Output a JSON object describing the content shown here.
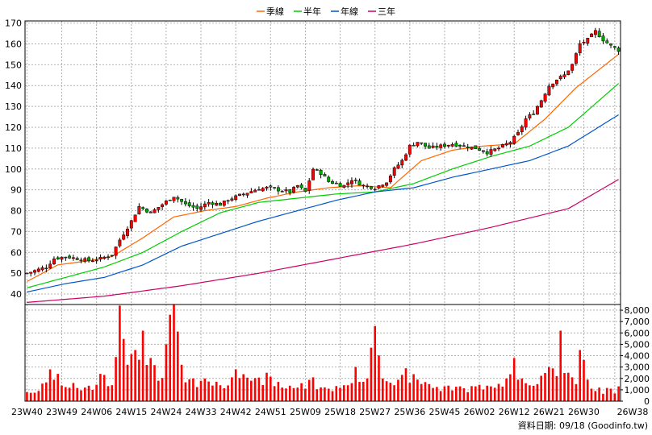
{
  "chart_data": {
    "type": "candlestick",
    "title": "",
    "legend": {
      "placement": "top-center",
      "items": [
        {
          "name": "季線",
          "color": "#ff6600"
        },
        {
          "name": "半年",
          "color": "#00cc00"
        },
        {
          "name": "年線",
          "color": "#0055cc"
        },
        {
          "name": "三年",
          "color": "#cc0066"
        }
      ]
    },
    "price_axis": {
      "ylim": [
        35,
        171
      ],
      "ticks": [
        40,
        50,
        60,
        70,
        80,
        90,
        100,
        110,
        120,
        130,
        140,
        150,
        160,
        170
      ]
    },
    "volume_axis": {
      "ylim": [
        0,
        8500
      ],
      "ticks": [
        0,
        1000,
        2000,
        3000,
        4000,
        5000,
        6000,
        7000,
        8000
      ],
      "tick_labels": [
        "0",
        "1,000",
        "2,000",
        "3,000",
        "4,000",
        "5,000",
        "6,000",
        "7,000",
        "8,000"
      ]
    },
    "x_axis": {
      "tick_labels": [
        "23W40",
        "23W49",
        "24W06",
        "24W15",
        "24W24",
        "24W33",
        "24W42",
        "24W51",
        "25W09",
        "25W18",
        "25W27",
        "25W36",
        "25W45",
        "26W02",
        "26W12",
        "26W21",
        "26W30",
        "26W38"
      ],
      "tick_bar_index": [
        0,
        9,
        18,
        27,
        36,
        45,
        54,
        63,
        72,
        81,
        90,
        99,
        108,
        117,
        126,
        135,
        144,
        152
      ]
    },
    "candle_colors": {
      "up": "#ff0000",
      "down": "#00aa00",
      "wick": "#000000"
    },
    "volume_color": "#ff0000",
    "grid": true,
    "source_note": "資料日期: 09/18 (Goodinfo.tw)",
    "close_anchors": [
      [
        0,
        50
      ],
      [
        5,
        53
      ],
      [
        7,
        57
      ],
      [
        10,
        58
      ],
      [
        13,
        57
      ],
      [
        16,
        56
      ],
      [
        19,
        57
      ],
      [
        22,
        59
      ],
      [
        24,
        66
      ],
      [
        27,
        75
      ],
      [
        29,
        82
      ],
      [
        32,
        79
      ],
      [
        35,
        83
      ],
      [
        38,
        87
      ],
      [
        41,
        83
      ],
      [
        44,
        81
      ],
      [
        47,
        84
      ],
      [
        50,
        83
      ],
      [
        53,
        86
      ],
      [
        56,
        88
      ],
      [
        59,
        90
      ],
      [
        62,
        91
      ],
      [
        65,
        90
      ],
      [
        68,
        89
      ],
      [
        70,
        92
      ],
      [
        72,
        89
      ],
      [
        74,
        100
      ],
      [
        76,
        98
      ],
      [
        78,
        94
      ],
      [
        82,
        92
      ],
      [
        84,
        95
      ],
      [
        87,
        92
      ],
      [
        90,
        91
      ],
      [
        93,
        94
      ],
      [
        95,
        100
      ],
      [
        97,
        104
      ],
      [
        99,
        111
      ],
      [
        101,
        113
      ],
      [
        104,
        110
      ],
      [
        107,
        111
      ],
      [
        110,
        112
      ],
      [
        113,
        111
      ],
      [
        116,
        110
      ],
      [
        119,
        108
      ],
      [
        122,
        110
      ],
      [
        125,
        113
      ],
      [
        127,
        117
      ],
      [
        129,
        124
      ],
      [
        131,
        127
      ],
      [
        133,
        133
      ],
      [
        135,
        140
      ],
      [
        137,
        143
      ],
      [
        139,
        145
      ],
      [
        141,
        150
      ],
      [
        143,
        160
      ],
      [
        145,
        162
      ],
      [
        147,
        166
      ],
      [
        149,
        162
      ],
      [
        151,
        159
      ],
      [
        153,
        157
      ]
    ],
    "volume_anchors": [
      [
        0,
        800
      ],
      [
        3,
        900
      ],
      [
        6,
        2800
      ],
      [
        8,
        2400
      ],
      [
        12,
        1600
      ],
      [
        15,
        1200
      ],
      [
        19,
        2400
      ],
      [
        22,
        1400
      ],
      [
        24,
        8400
      ],
      [
        26,
        3200
      ],
      [
        28,
        4500
      ],
      [
        30,
        6200
      ],
      [
        32,
        3800
      ],
      [
        34,
        1800
      ],
      [
        36,
        5000
      ],
      [
        37,
        7600
      ],
      [
        38,
        8500
      ],
      [
        40,
        3200
      ],
      [
        43,
        2000
      ],
      [
        46,
        2000
      ],
      [
        50,
        1400
      ],
      [
        54,
        2800
      ],
      [
        58,
        1800
      ],
      [
        62,
        2500
      ],
      [
        66,
        1200
      ],
      [
        70,
        1200
      ],
      [
        74,
        2100
      ],
      [
        78,
        1100
      ],
      [
        82,
        1400
      ],
      [
        85,
        3000
      ],
      [
        88,
        2000
      ],
      [
        89,
        4700
      ],
      [
        90,
        6600
      ],
      [
        92,
        2000
      ],
      [
        95,
        1400
      ],
      [
        98,
        2900
      ],
      [
        101,
        1900
      ],
      [
        104,
        1500
      ],
      [
        108,
        1300
      ],
      [
        112,
        1300
      ],
      [
        116,
        1300
      ],
      [
        120,
        1300
      ],
      [
        124,
        2000
      ],
      [
        126,
        3800
      ],
      [
        128,
        2000
      ],
      [
        132,
        1500
      ],
      [
        135,
        3000
      ],
      [
        137,
        2200
      ],
      [
        138,
        6200
      ],
      [
        140,
        2500
      ],
      [
        142,
        1500
      ],
      [
        143,
        4500
      ],
      [
        145,
        1900
      ],
      [
        148,
        1200
      ],
      [
        151,
        1100
      ],
      [
        153,
        1300
      ]
    ],
    "ma_anchors": {
      "季線": [
        [
          0,
          46
        ],
        [
          8,
          54
        ],
        [
          16,
          56
        ],
        [
          22,
          58
        ],
        [
          30,
          67
        ],
        [
          38,
          77
        ],
        [
          46,
          80
        ],
        [
          54,
          82
        ],
        [
          62,
          86
        ],
        [
          70,
          89
        ],
        [
          78,
          91
        ],
        [
          86,
          92
        ],
        [
          94,
          91
        ],
        [
          102,
          104
        ],
        [
          110,
          109
        ],
        [
          118,
          111
        ],
        [
          126,
          112
        ],
        [
          134,
          124
        ],
        [
          142,
          139
        ],
        [
          153,
          155
        ]
      ],
      "半年": [
        [
          0,
          43
        ],
        [
          10,
          48
        ],
        [
          20,
          53
        ],
        [
          30,
          60
        ],
        [
          40,
          70
        ],
        [
          50,
          79
        ],
        [
          60,
          84
        ],
        [
          70,
          86
        ],
        [
          80,
          88
        ],
        [
          90,
          89
        ],
        [
          100,
          93
        ],
        [
          110,
          100
        ],
        [
          120,
          106
        ],
        [
          130,
          111
        ],
        [
          140,
          120
        ],
        [
          153,
          141
        ]
      ],
      "年線": [
        [
          0,
          41
        ],
        [
          10,
          45
        ],
        [
          20,
          48
        ],
        [
          30,
          54
        ],
        [
          40,
          63
        ],
        [
          50,
          69
        ],
        [
          60,
          75
        ],
        [
          70,
          80
        ],
        [
          80,
          85
        ],
        [
          90,
          89
        ],
        [
          100,
          91
        ],
        [
          110,
          96
        ],
        [
          120,
          100
        ],
        [
          130,
          104
        ],
        [
          140,
          111
        ],
        [
          153,
          126
        ]
      ],
      "三年": [
        [
          0,
          36
        ],
        [
          20,
          39
        ],
        [
          40,
          44
        ],
        [
          60,
          50
        ],
        [
          80,
          57
        ],
        [
          100,
          64
        ],
        [
          120,
          72
        ],
        [
          140,
          81
        ],
        [
          153,
          95
        ]
      ]
    }
  }
}
